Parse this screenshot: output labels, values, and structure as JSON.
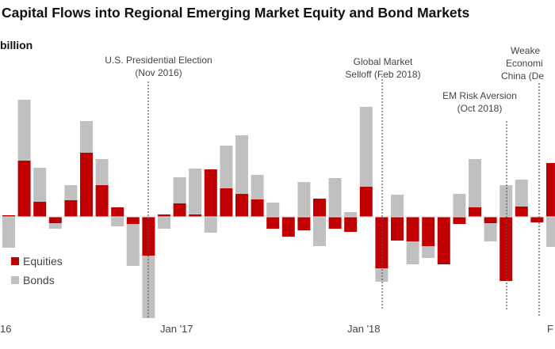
{
  "chart_data": {
    "type": "bar",
    "stacked": true,
    "title": "Capital Flows into Regional Emerging Market Equity and Bond Markets",
    "ylabel": "billion",
    "ylim": [
      -13,
      15
    ],
    "grid": false,
    "legend_position": "bottom-left",
    "x_tick_labels": [
      "16",
      "Jan '17",
      "Jan '18",
      "F"
    ],
    "series": [
      {
        "name": "Equities",
        "color": "#c00000",
        "values": [
          -3.9,
          0.2,
          7.1,
          1.9,
          -0.8,
          2.1,
          8.1,
          4.0,
          1.2,
          -0.9,
          -4.9,
          0.3,
          1.7,
          0.3,
          6.0,
          3.6,
          2.9,
          2.2,
          -1.5,
          -2.5,
          -1.7,
          2.3,
          -1.5,
          -1.9,
          3.8,
          -6.5,
          -3.0,
          -3.1,
          -3.7,
          -6.0,
          -0.9,
          1.2,
          -0.8,
          -8.1,
          1.3,
          -0.7,
          6.8
        ]
      },
      {
        "name": "Bonds",
        "color": "#c0c0c0",
        "values": [
          2.6,
          -3.9,
          7.7,
          4.3,
          -0.7,
          1.9,
          4.0,
          3.3,
          -1.2,
          -5.3,
          -7.9,
          -1.5,
          3.3,
          5.8,
          -2.0,
          5.4,
          7.4,
          3.1,
          1.8,
          0,
          4.4,
          -3.7,
          4.9,
          0.6,
          10.1,
          -1.7,
          2.8,
          -2.9,
          -1.5,
          0,
          2.9,
          6.1,
          -2.3,
          4.0,
          3.4,
          0,
          -3.8
        ]
      }
    ],
    "annotations": [
      {
        "lines": [
          "U.S. Presidential Election",
          "(Nov 2016)"
        ]
      },
      {
        "lines": [
          "Global Market",
          "Selloff (Feb 2018)"
        ]
      },
      {
        "lines": [
          "EM Risk Aversion",
          "(Oct 2018)"
        ]
      },
      {
        "lines": [
          "Weake",
          "Economi",
          "China (De"
        ]
      }
    ]
  }
}
